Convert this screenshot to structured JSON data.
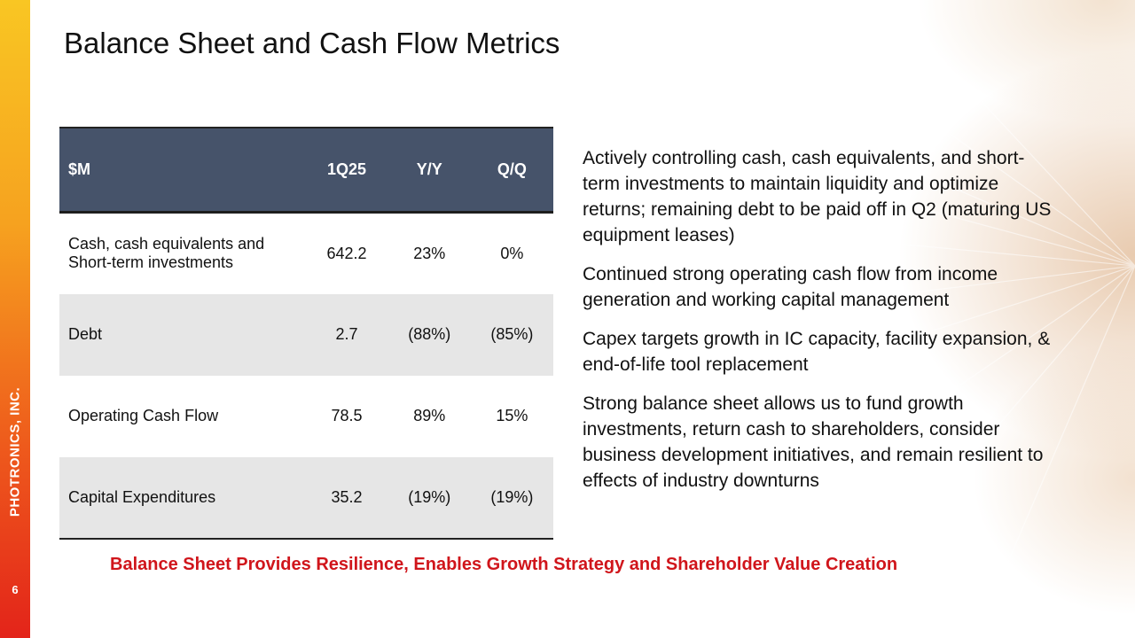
{
  "sidebar": {
    "company": "PHOTRONICS, INC.",
    "page_number": "6",
    "colors": [
      "#f9c623",
      "#e3241a"
    ]
  },
  "slide": {
    "title": "Balance Sheet and Cash Flow Metrics"
  },
  "table": {
    "headers": [
      "$M",
      "1Q25",
      "Y/Y",
      "Q/Q"
    ],
    "rows": [
      {
        "label": "Cash, cash equivalents and Short-term investments",
        "value": "642.2",
        "yy": "23%",
        "qq": "0%"
      },
      {
        "label": "Debt",
        "value": "2.7",
        "yy": "(88%)",
        "qq": "(85%)"
      },
      {
        "label": "Operating Cash Flow",
        "value": "78.5",
        "yy": "89%",
        "qq": "15%"
      },
      {
        "label": "Capital Expenditures",
        "value": "35.2",
        "yy": "(19%)",
        "qq": "(19%)"
      }
    ],
    "header_color": "#46536a",
    "shade_color": "#e6e6e6"
  },
  "bullets": [
    "Actively controlling cash, cash equivalents, and short-term investments to maintain liquidity and optimize returns; remaining debt to be paid off in Q2 (maturing US equipment leases)",
    "Continued strong operating cash flow from income generation and working capital management",
    "Capex targets growth in IC capacity, facility expansion, & end-of-life tool replacement",
    "Strong balance sheet allows us to fund growth investments, return cash to shareholders, consider business development initiatives, and remain resilient to effects of industry downturns"
  ],
  "tagline": {
    "text": "Balance Sheet Provides Resilience, Enables Growth Strategy and Shareholder Value Creation",
    "color": "#d0151b"
  }
}
